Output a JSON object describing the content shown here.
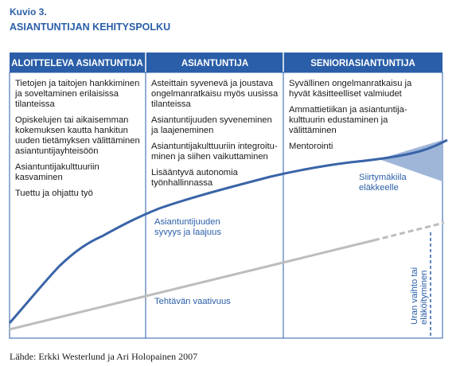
{
  "figure": {
    "label": "Kuvio 3.",
    "title": "ASIANTUNTIJAN KEHITYSPOLKU"
  },
  "columns": [
    {
      "header": "ALOITTELEVA ASIANTUNTIJA",
      "items": [
        "Tietojen ja taitojen hankkiminen ja soveltaminen erilaisissa tilanteissa",
        "Opiskelujen tai aikaisemman kokemuksen kautta hankitun uuden tietämyksen välittäminen asiantuntijayhteisöön",
        "Asiantuntijakulttuuriin kasvaminen",
        "Tuettu ja ohjattu työ"
      ]
    },
    {
      "header": "ASIANTUNTIJA",
      "items": [
        "Asteittain syvenevä ja joustava ongelmanratkaisu myös uusissa tilanteissa",
        "Asiantuntijuuden syveneminen ja laajeneminen",
        "Asiantuntijakulttuuriin integroitu-minen ja siihen vaikuttaminen",
        "Lisääntyvä autonomia työnhallinnassa"
      ]
    },
    {
      "header": "SENIORIASIANTUNTIJA",
      "items": [
        "Syvällinen ongelmanratkaisu ja hyvät käsitteelliset valmiudet",
        "Ammattietiikan ja asiantuntija-kulttuurin edustaminen ja välittäminen",
        "Mentorointi"
      ]
    }
  ],
  "curves": {
    "expertise_label": "Asiantuntijuuden syvyys ja laajuus",
    "task_label": "Tehtävän vaativuus",
    "transition_label": "Siirtymäkiila eläkkeelle",
    "career_change_label": "Uran vaihto tai eläköityminen"
  },
  "colors": {
    "header_bg": "#2a5ea8",
    "border": "#2a5ea8",
    "expertise_curve": "#3a64a8",
    "task_curve": "#bdbdbd",
    "wedge": "#9fb6d9"
  },
  "source": "Lähde: Erkki Westerlund ja Ari Holopainen 2007"
}
